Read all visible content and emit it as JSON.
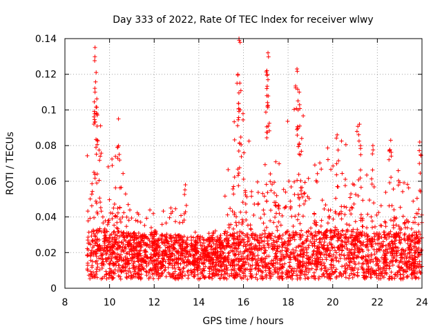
{
  "chart_data": {
    "type": "scatter",
    "title": "Day 333 of 2022, Rate Of TEC Index for receiver wlwy",
    "xlabel": "GPS time / hours",
    "ylabel": "ROTI / TECUs",
    "xlim": [
      8,
      24
    ],
    "ylim": [
      0,
      0.14
    ],
    "xticks": [
      8,
      10,
      12,
      14,
      16,
      18,
      20,
      22,
      24
    ],
    "xtick_labels": [
      "8",
      "10",
      "12",
      "14",
      "16",
      "18",
      "20",
      "22",
      "24"
    ],
    "yticks": [
      0,
      0.02,
      0.04,
      0.06,
      0.08,
      0.1,
      0.12,
      0.14
    ],
    "ytick_labels": [
      "0",
      "0.02",
      "0.04",
      "0.06",
      "0.08",
      "0.1",
      "0.12",
      "0.14"
    ],
    "grid": true,
    "marker": "+",
    "marker_color": "#ff0000",
    "series": [
      {
        "name": "ROTI",
        "envelope": [
          {
            "x": 9.0,
            "base": 0.012,
            "peak": 0.075
          },
          {
            "x": 9.4,
            "base": 0.018,
            "peak": 0.135
          },
          {
            "x": 9.8,
            "base": 0.015,
            "peak": 0.06
          },
          {
            "x": 10.4,
            "base": 0.015,
            "peak": 0.095
          },
          {
            "x": 11.0,
            "base": 0.014,
            "peak": 0.04
          },
          {
            "x": 12.0,
            "base": 0.015,
            "peak": 0.05
          },
          {
            "x": 13.0,
            "base": 0.013,
            "peak": 0.045
          },
          {
            "x": 14.0,
            "base": 0.012,
            "peak": 0.03
          },
          {
            "x": 15.0,
            "base": 0.012,
            "peak": 0.035
          },
          {
            "x": 15.8,
            "base": 0.015,
            "peak": 0.14
          },
          {
            "x": 16.5,
            "base": 0.013,
            "peak": 0.05
          },
          {
            "x": 17.1,
            "base": 0.014,
            "peak": 0.132
          },
          {
            "x": 17.6,
            "base": 0.014,
            "peak": 0.085
          },
          {
            "x": 18.4,
            "base": 0.016,
            "peak": 0.123
          },
          {
            "x": 19.0,
            "base": 0.015,
            "peak": 0.068
          },
          {
            "x": 20.2,
            "base": 0.016,
            "peak": 0.086
          },
          {
            "x": 21.2,
            "base": 0.015,
            "peak": 0.092
          },
          {
            "x": 22.0,
            "base": 0.014,
            "peak": 0.05
          },
          {
            "x": 22.6,
            "base": 0.015,
            "peak": 0.083
          },
          {
            "x": 23.5,
            "base": 0.013,
            "peak": 0.06
          },
          {
            "x": 24.0,
            "base": 0.014,
            "peak": 0.082
          }
        ],
        "notable_points": [
          {
            "x": 9.35,
            "y": 0.135
          },
          {
            "x": 9.4,
            "y": 0.121
          },
          {
            "x": 9.35,
            "y": 0.11
          },
          {
            "x": 9.45,
            "y": 0.097
          },
          {
            "x": 10.4,
            "y": 0.095
          },
          {
            "x": 15.8,
            "y": 0.14
          },
          {
            "x": 15.75,
            "y": 0.12
          },
          {
            "x": 15.85,
            "y": 0.1
          },
          {
            "x": 17.1,
            "y": 0.132
          },
          {
            "x": 17.05,
            "y": 0.122
          },
          {
            "x": 17.05,
            "y": 0.108
          },
          {
            "x": 18.4,
            "y": 0.123
          },
          {
            "x": 18.5,
            "y": 0.11
          },
          {
            "x": 18.45,
            "y": 0.1
          },
          {
            "x": 20.2,
            "y": 0.086
          },
          {
            "x": 21.2,
            "y": 0.092
          },
          {
            "x": 21.8,
            "y": 0.08
          },
          {
            "x": 22.6,
            "y": 0.083
          },
          {
            "x": 23.9,
            "y": 0.082
          },
          {
            "x": 13.4,
            "y": 0.058
          }
        ]
      }
    ]
  }
}
